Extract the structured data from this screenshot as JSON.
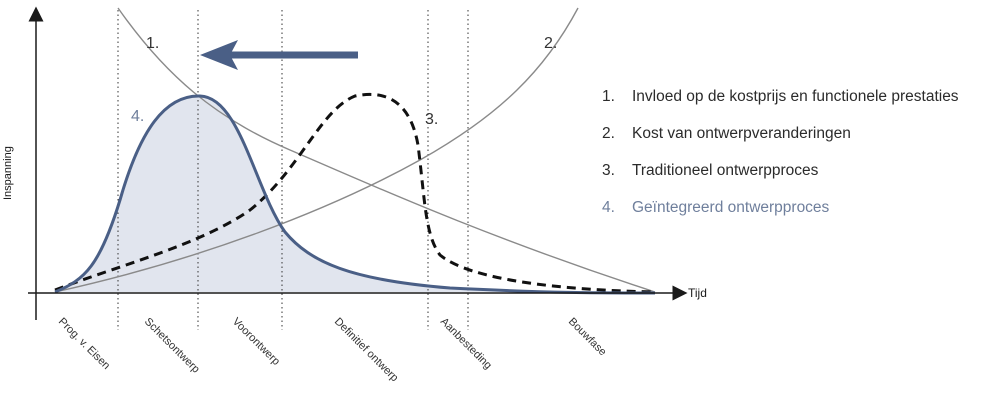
{
  "axes": {
    "y_label": "Inspanning",
    "x_label": "Tijd"
  },
  "curve_labels": {
    "curve1": "1.",
    "curve2": "2.",
    "curve3": "3.",
    "curve4": "4."
  },
  "phases": [
    "Prog. v. Eisen",
    "Schetsontwerp",
    "Voorontwerp",
    "Definitief ontwerp",
    "Aanbesteding",
    "Bouwfase"
  ],
  "legend": [
    {
      "num": "1.",
      "text": "Invloed op de kostprijs en functionele prestaties"
    },
    {
      "num": "2.",
      "text": "Kost van ontwerpveranderingen"
    },
    {
      "num": "3.",
      "text": "Traditioneel ontwerpproces"
    },
    {
      "num": "4.",
      "text": "Geïntegreerd ontwerpproces"
    }
  ],
  "colors": {
    "accent_blue": "#4a5f86",
    "fill_blue": "#e1e5ee",
    "thin_gray": "#8a8a8a",
    "axis": "#1a1a1a",
    "legend_accent": "#6f7f9c"
  },
  "arrow": {
    "direction": "left",
    "icon": "arrow-left-icon"
  }
}
